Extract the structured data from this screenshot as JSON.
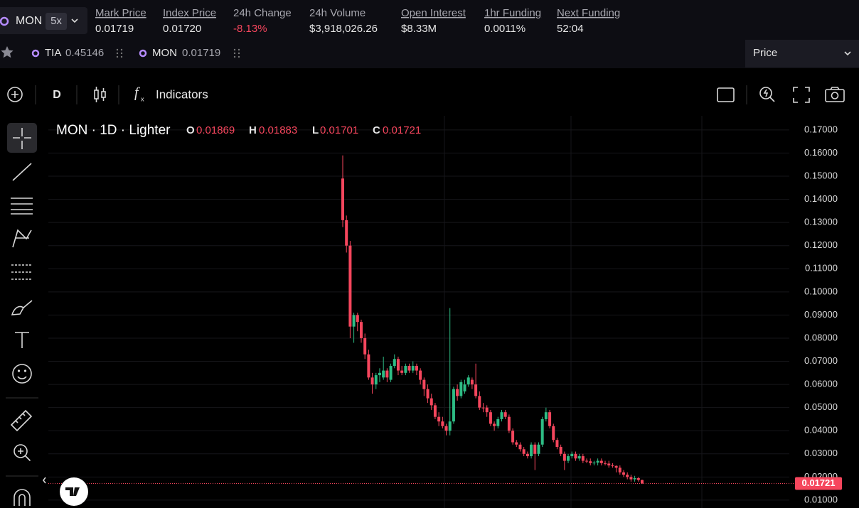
{
  "ticker": {
    "symbol": "MON",
    "leverage": "5x"
  },
  "stats": [
    {
      "label": "Mark Price",
      "value": "0.01719"
    },
    {
      "label": "Index Price",
      "value": "0.01720"
    },
    {
      "label": "24h Change",
      "value": "-8.13%"
    },
    {
      "label": "24h Volume",
      "value": "$3,918,026.26"
    },
    {
      "label": "Open Interest",
      "value": "$8.33M"
    },
    {
      "label": "1hr Funding",
      "value": "0.0011%"
    },
    {
      "label": "Next Funding",
      "value": "52:04"
    }
  ],
  "favorites": [
    {
      "symbol": "TIA",
      "price": "0.45146"
    },
    {
      "symbol": "MON",
      "price": "0.01719"
    }
  ],
  "price_select": "Price",
  "toolbar": {
    "interval": "D",
    "indicators": "Indicators"
  },
  "chart_data": {
    "type": "candlestick",
    "title": "MON · 1D · Lighter",
    "ohlc_labels": [
      "O",
      "H",
      "L",
      "C"
    ],
    "up_color": "#2ebd85",
    "down_color": "#f6465d",
    "open": [
      0.149,
      0.131,
      0.12,
      0.085,
      0.09,
      0.087,
      0.08,
      0.073,
      0.063,
      0.06,
      0.064,
      0.063,
      0.066,
      0.062,
      0.068,
      0.071,
      0.066,
      0.065,
      0.068,
      0.066,
      0.068,
      0.066,
      0.062,
      0.058,
      0.054,
      0.051,
      0.046,
      0.044,
      0.042,
      0.04,
      0.044,
      0.058,
      0.055,
      0.057,
      0.06,
      0.062,
      0.06,
      0.055,
      0.05,
      0.05,
      0.048,
      0.043,
      0.042,
      0.045,
      0.048,
      0.046,
      0.04,
      0.035,
      0.034,
      0.032,
      0.03,
      0.029,
      0.034,
      0.03,
      0.034,
      0.045,
      0.048,
      0.042,
      0.036,
      0.033,
      0.03,
      0.027,
      0.029,
      0.03,
      0.028,
      0.029,
      0.027,
      0.0268,
      0.026,
      0.0262,
      0.027,
      0.026,
      0.0258,
      0.025,
      0.0248,
      0.024,
      0.022,
      0.021,
      0.02,
      0.019,
      0.0195,
      0.01869
    ],
    "high": [
      0.159,
      0.133,
      0.122,
      0.091,
      0.091,
      0.088,
      0.082,
      0.075,
      0.065,
      0.065,
      0.067,
      0.072,
      0.067,
      0.069,
      0.073,
      0.072,
      0.068,
      0.069,
      0.069,
      0.07,
      0.069,
      0.067,
      0.063,
      0.06,
      0.056,
      0.052,
      0.048,
      0.046,
      0.043,
      0.093,
      0.059,
      0.06,
      0.062,
      0.062,
      0.064,
      0.063,
      0.069,
      0.057,
      0.052,
      0.051,
      0.049,
      0.044,
      0.046,
      0.049,
      0.049,
      0.047,
      0.041,
      0.036,
      0.035,
      0.033,
      0.031,
      0.035,
      0.035,
      0.035,
      0.046,
      0.05,
      0.049,
      0.043,
      0.037,
      0.034,
      0.031,
      0.03,
      0.031,
      0.031,
      0.03,
      0.03,
      0.028,
      0.028,
      0.027,
      0.028,
      0.028,
      0.027,
      0.027,
      0.026,
      0.025,
      0.025,
      0.023,
      0.022,
      0.021,
      0.0205,
      0.02,
      0.01883
    ],
    "low": [
      0.128,
      0.117,
      0.08,
      0.078,
      0.083,
      0.078,
      0.071,
      0.062,
      0.056,
      0.058,
      0.061,
      0.062,
      0.061,
      0.061,
      0.067,
      0.064,
      0.064,
      0.064,
      0.065,
      0.065,
      0.064,
      0.06,
      0.055,
      0.052,
      0.049,
      0.045,
      0.042,
      0.041,
      0.038,
      0.038,
      0.043,
      0.053,
      0.054,
      0.056,
      0.059,
      0.058,
      0.054,
      0.049,
      0.048,
      0.046,
      0.042,
      0.04,
      0.041,
      0.044,
      0.045,
      0.039,
      0.034,
      0.033,
      0.031,
      0.029,
      0.028,
      0.028,
      0.023,
      0.029,
      0.033,
      0.044,
      0.041,
      0.035,
      0.032,
      0.029,
      0.023,
      0.026,
      0.028,
      0.027,
      0.027,
      0.026,
      0.026,
      0.025,
      0.025,
      0.025,
      0.025,
      0.025,
      0.024,
      0.024,
      0.022,
      0.021,
      0.02,
      0.019,
      0.018,
      0.018,
      0.018,
      0.01701
    ],
    "close": [
      0.131,
      0.12,
      0.085,
      0.09,
      0.087,
      0.08,
      0.073,
      0.063,
      0.06,
      0.064,
      0.065,
      0.066,
      0.063,
      0.068,
      0.071,
      0.066,
      0.065,
      0.068,
      0.066,
      0.068,
      0.066,
      0.062,
      0.058,
      0.054,
      0.051,
      0.046,
      0.044,
      0.042,
      0.04,
      0.044,
      0.058,
      0.055,
      0.061,
      0.06,
      0.063,
      0.06,
      0.055,
      0.05,
      0.05,
      0.048,
      0.043,
      0.042,
      0.045,
      0.048,
      0.046,
      0.04,
      0.035,
      0.034,
      0.032,
      0.03,
      0.029,
      0.034,
      0.03,
      0.034,
      0.045,
      0.048,
      0.042,
      0.036,
      0.033,
      0.03,
      0.027,
      0.029,
      0.03,
      0.028,
      0.029,
      0.027,
      0.0268,
      0.026,
      0.0262,
      0.027,
      0.026,
      0.0258,
      0.025,
      0.0248,
      0.024,
      0.022,
      0.021,
      0.02,
      0.019,
      0.0195,
      0.0187,
      0.01721
    ],
    "ylim": [
      0.0066,
      0.1761
    ],
    "yticks": [
      {
        "value": 0.01,
        "label": "0.01000"
      },
      {
        "value": 0.02,
        "label": "0.02000"
      },
      {
        "value": 0.03,
        "label": "0.03000"
      },
      {
        "value": 0.04,
        "label": "0.04000"
      },
      {
        "value": 0.05,
        "label": "0.05000"
      },
      {
        "value": 0.06,
        "label": "0.06000"
      },
      {
        "value": 0.07,
        "label": "0.07000"
      },
      {
        "value": 0.08,
        "label": "0.08000"
      },
      {
        "value": 0.09,
        "label": "0.09000"
      },
      {
        "value": 0.1,
        "label": "0.10000"
      },
      {
        "value": 0.11,
        "label": "0.11000"
      },
      {
        "value": 0.12,
        "label": "0.12000"
      },
      {
        "value": 0.13,
        "label": "0.13000"
      },
      {
        "value": 0.14,
        "label": "0.14000"
      },
      {
        "value": 0.15,
        "label": "0.15000"
      },
      {
        "value": 0.16,
        "label": "0.16000"
      },
      {
        "value": 0.17,
        "label": "0.17000"
      }
    ],
    "grid": true
  }
}
